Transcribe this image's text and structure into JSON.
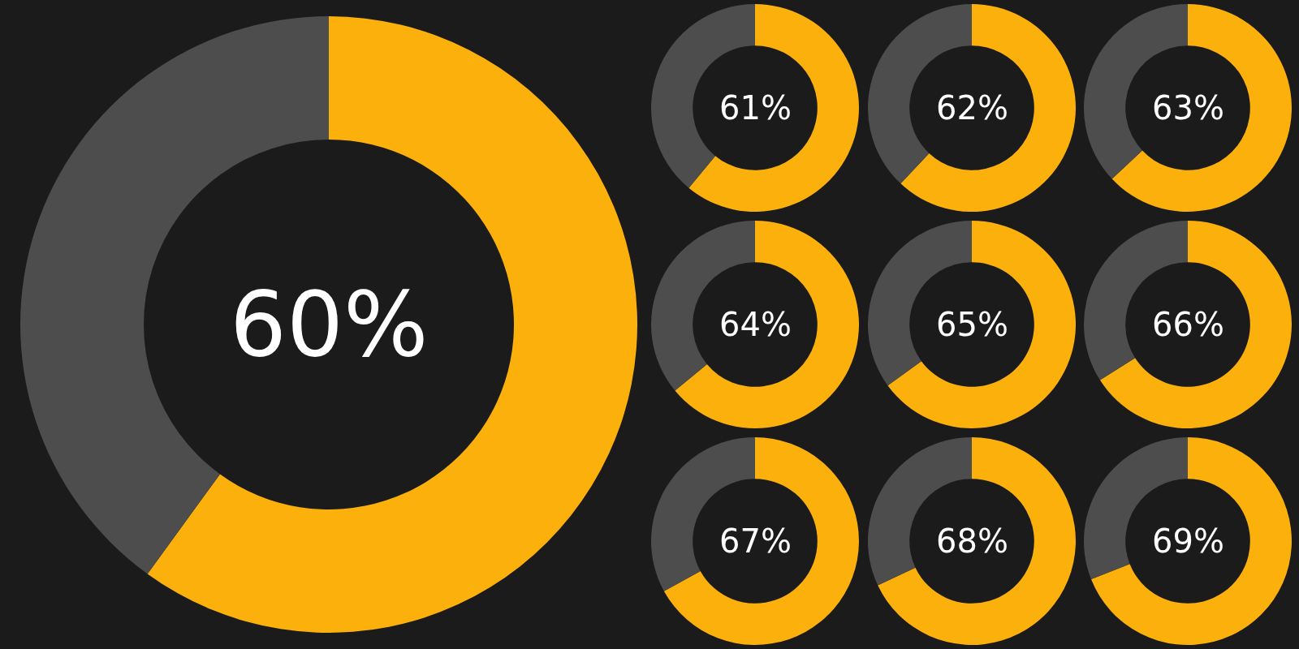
{
  "chart_data": [
    {
      "type": "donut",
      "categories": [
        null,
        null
      ],
      "values": [
        60,
        40
      ],
      "colors": [
        "#fbb00b",
        "#4d4d4d"
      ],
      "annotations": [
        "60%"
      ]
    },
    {
      "type": "donut",
      "categories": [
        null,
        null
      ],
      "values": [
        61,
        39
      ],
      "colors": [
        "#fbb00b",
        "#4d4d4d"
      ],
      "annotations": [
        "61%"
      ]
    },
    {
      "type": "donut",
      "categories": [
        null,
        null
      ],
      "values": [
        62,
        38
      ],
      "colors": [
        "#fbb00b",
        "#4d4d4d"
      ],
      "annotations": [
        "62%"
      ]
    },
    {
      "type": "donut",
      "categories": [
        null,
        null
      ],
      "values": [
        63,
        37
      ],
      "colors": [
        "#fbb00b",
        "#4d4d4d"
      ],
      "annotations": [
        "63%"
      ]
    },
    {
      "type": "donut",
      "categories": [
        null,
        null
      ],
      "values": [
        64,
        36
      ],
      "colors": [
        "#fbb00b",
        "#4d4d4d"
      ],
      "annotations": [
        "64%"
      ]
    },
    {
      "type": "donut",
      "categories": [
        null,
        null
      ],
      "values": [
        65,
        35
      ],
      "colors": [
        "#fbb00b",
        "#4d4d4d"
      ],
      "annotations": [
        "65%"
      ]
    },
    {
      "type": "donut",
      "categories": [
        null,
        null
      ],
      "values": [
        66,
        34
      ],
      "colors": [
        "#fbb00b",
        "#4d4d4d"
      ],
      "annotations": [
        "66%"
      ]
    },
    {
      "type": "donut",
      "categories": [
        null,
        null
      ],
      "values": [
        67,
        33
      ],
      "colors": [
        "#fbb00b",
        "#4d4d4d"
      ],
      "annotations": [
        "67%"
      ]
    },
    {
      "type": "donut",
      "categories": [
        null,
        null
      ],
      "values": [
        68,
        32
      ],
      "colors": [
        "#fbb00b",
        "#4d4d4d"
      ],
      "annotations": [
        "68%"
      ]
    },
    {
      "type": "donut",
      "categories": [
        null,
        null
      ],
      "values": [
        69,
        31
      ],
      "colors": [
        "#fbb00b",
        "#4d4d4d"
      ],
      "annotations": [
        "69%"
      ]
    }
  ]
}
